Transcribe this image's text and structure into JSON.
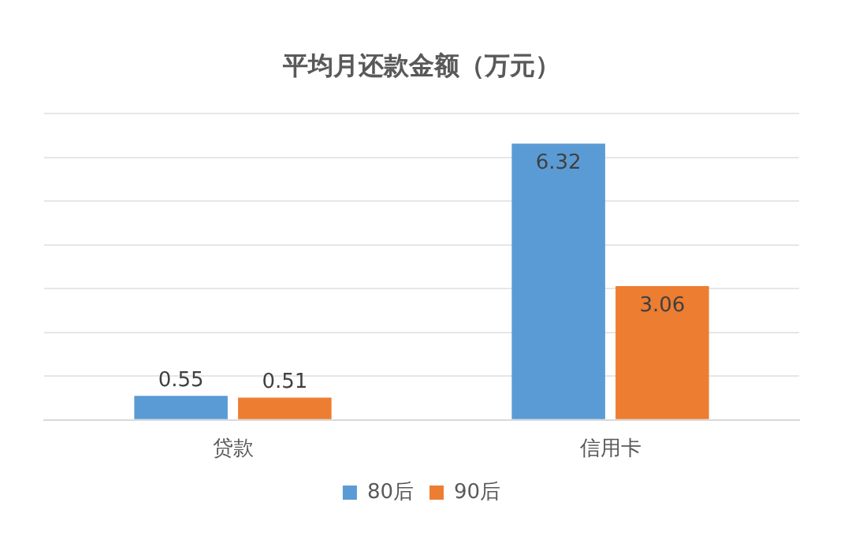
{
  "chart_data": {
    "type": "bar",
    "title": "平均月还款金额（万元）",
    "categories": [
      "贷款",
      "信用卡"
    ],
    "series": [
      {
        "name": "80后",
        "color": "#5b9bd5",
        "values": [
          0.55,
          6.32
        ]
      },
      {
        "name": "90后",
        "color": "#ed7d31",
        "values": [
          0.51,
          3.06
        ]
      }
    ],
    "ylim": [
      0,
      7
    ],
    "yticks": [
      {
        "value": 0,
        "label": null
      },
      {
        "value": 1,
        "label": null
      },
      {
        "value": 2,
        "label": null
      },
      {
        "value": 3,
        "label": null
      },
      {
        "value": 4,
        "label": null
      },
      {
        "value": 5,
        "label": null
      },
      {
        "value": 6,
        "label": null
      },
      {
        "value": 7,
        "label": null
      }
    ],
    "grid": "y",
    "legend": "bottom",
    "data_labels": true
  }
}
